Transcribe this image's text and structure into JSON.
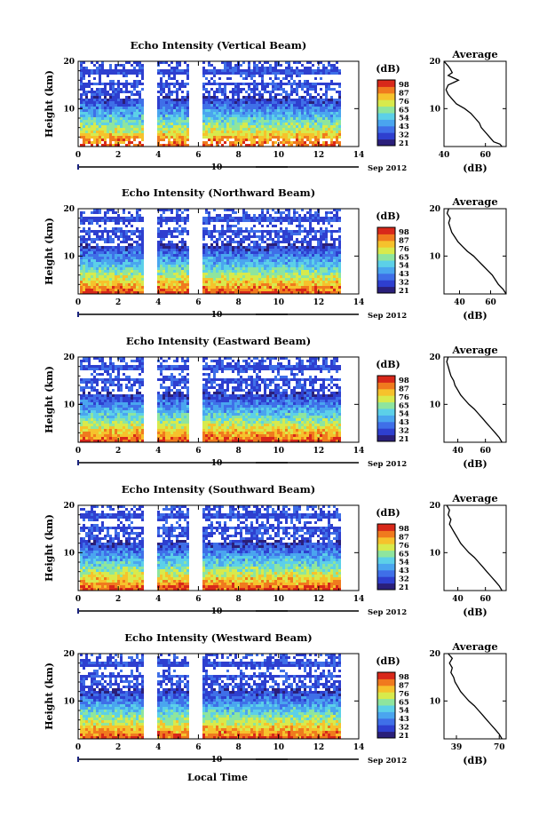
{
  "colors": {
    "colormap": [
      "#2a1f7a",
      "#2e3fcf",
      "#3f6fe8",
      "#4aa5ef",
      "#5cd0e8",
      "#8ee59e",
      "#d8ea4c",
      "#f6c22c",
      "#f07a1e",
      "#d8281a"
    ],
    "trace": "#000000",
    "time_bar": "#000000",
    "time_marker": "#1a237e"
  },
  "figure": {
    "xlabel": "Local Time",
    "date_label": "Sep 2012",
    "time_bar_label": "10"
  },
  "chart_data": [
    {
      "type": "heatmap",
      "title": "Echo Intensity (Vertical Beam)",
      "ylabel": "Height (km)",
      "xlim": [
        0,
        14
      ],
      "ylim": [
        2,
        20
      ],
      "xticks": [
        "0",
        "2",
        "4",
        "6",
        "8",
        "10",
        "12",
        "14"
      ],
      "yticks": [
        "10",
        "20"
      ],
      "data_gaps_hours": [
        [
          3.2,
          3.9
        ],
        [
          5.5,
          6.2
        ]
      ],
      "colorbar": {
        "unit": "(dB)",
        "tick_labels": [
          "98",
          "87",
          "76",
          "65",
          "54",
          "43",
          "32",
          "21"
        ],
        "range": [
          21,
          98
        ]
      },
      "average": {
        "title": "Average",
        "xlabel": "(dB)",
        "xlim": [
          40,
          70
        ],
        "xticks": [
          "40",
          "60"
        ],
        "ylim": [
          2,
          20
        ],
        "yticks": [
          "10",
          "20"
        ],
        "profile": [
          [
            68,
            2
          ],
          [
            67,
            2.5
          ],
          [
            64,
            3
          ],
          [
            62,
            4
          ],
          [
            60,
            5
          ],
          [
            58,
            6
          ],
          [
            57,
            7
          ],
          [
            55,
            8
          ],
          [
            53,
            9
          ],
          [
            50,
            10
          ],
          [
            46,
            11
          ],
          [
            44,
            12
          ],
          [
            42,
            13
          ],
          [
            41,
            14
          ],
          [
            42,
            15
          ],
          [
            45,
            15.6
          ],
          [
            47,
            16
          ],
          [
            42,
            17
          ],
          [
            44,
            17.6
          ],
          [
            43,
            18.4
          ],
          [
            42,
            19
          ],
          [
            40,
            20
          ]
        ]
      }
    },
    {
      "type": "heatmap",
      "title": "Echo Intensity (Northward Beam)",
      "ylabel": "Height (km)",
      "xlim": [
        0,
        14
      ],
      "ylim": [
        2,
        20
      ],
      "xticks": [
        "0",
        "2",
        "4",
        "6",
        "8",
        "10",
        "12",
        "14"
      ],
      "yticks": [
        "10",
        "20"
      ],
      "data_gaps_hours": [
        [
          3.2,
          3.9
        ],
        [
          5.5,
          6.2
        ]
      ],
      "colorbar": {
        "unit": "(dB)",
        "tick_labels": [
          "98",
          "87",
          "76",
          "65",
          "54",
          "43",
          "32",
          "21"
        ],
        "range": [
          21,
          98
        ]
      },
      "average": {
        "title": "Average",
        "xlabel": "(dB)",
        "xlim": [
          30,
          70
        ],
        "xticks": [
          "40",
          "60"
        ],
        "ylim": [
          2,
          20
        ],
        "yticks": [
          "10",
          "20"
        ],
        "profile": [
          [
            70,
            2
          ],
          [
            68,
            3
          ],
          [
            65,
            4
          ],
          [
            63,
            5
          ],
          [
            61,
            6
          ],
          [
            58,
            7
          ],
          [
            55,
            8
          ],
          [
            52,
            9
          ],
          [
            49,
            10
          ],
          [
            45,
            11
          ],
          [
            42,
            12
          ],
          [
            39,
            13
          ],
          [
            37,
            14
          ],
          [
            35,
            15
          ],
          [
            34,
            16
          ],
          [
            33,
            17
          ],
          [
            34,
            18
          ],
          [
            32,
            19
          ],
          [
            33,
            20
          ]
        ]
      }
    },
    {
      "type": "heatmap",
      "title": "Echo Intensity (Eastward Beam)",
      "ylabel": "Height (km)",
      "xlim": [
        0,
        14
      ],
      "ylim": [
        2,
        20
      ],
      "xticks": [
        "0",
        "2",
        "4",
        "6",
        "8",
        "10",
        "12",
        "14"
      ],
      "yticks": [
        "10",
        "20"
      ],
      "data_gaps_hours": [
        [
          3.2,
          3.9
        ],
        [
          5.5,
          6.2
        ]
      ],
      "colorbar": {
        "unit": "(dB)",
        "tick_labels": [
          "98",
          "87",
          "76",
          "65",
          "54",
          "43",
          "32",
          "21"
        ],
        "range": [
          21,
          98
        ]
      },
      "average": {
        "title": "Average",
        "xlabel": "(dB)",
        "xlim": [
          30,
          75
        ],
        "xticks": [
          "40",
          "60"
        ],
        "ylim": [
          2,
          20
        ],
        "yticks": [
          "10",
          "20"
        ],
        "profile": [
          [
            72,
            2
          ],
          [
            70,
            3
          ],
          [
            67,
            4
          ],
          [
            64,
            5
          ],
          [
            61,
            6
          ],
          [
            58,
            7
          ],
          [
            55,
            8
          ],
          [
            52,
            9
          ],
          [
            48,
            10
          ],
          [
            45,
            11
          ],
          [
            42,
            12
          ],
          [
            40,
            13
          ],
          [
            38,
            14
          ],
          [
            37,
            15
          ],
          [
            35,
            16
          ],
          [
            34,
            17
          ],
          [
            33,
            18
          ],
          [
            32,
            19
          ],
          [
            33,
            20
          ]
        ]
      }
    },
    {
      "type": "heatmap",
      "title": "Echo Intensity (Southward Beam)",
      "ylabel": "Height (km)",
      "xlim": [
        0,
        14
      ],
      "ylim": [
        2,
        20
      ],
      "xticks": [
        "0",
        "2",
        "4",
        "6",
        "8",
        "10",
        "12",
        "14"
      ],
      "yticks": [
        "10",
        "20"
      ],
      "data_gaps_hours": [
        [
          3.2,
          3.9
        ],
        [
          5.5,
          6.2
        ]
      ],
      "colorbar": {
        "unit": "(dB)",
        "tick_labels": [
          "98",
          "87",
          "76",
          "65",
          "54",
          "43",
          "32",
          "21"
        ],
        "range": [
          21,
          98
        ]
      },
      "average": {
        "title": "Average",
        "xlabel": "(dB)",
        "xlim": [
          30,
          75
        ],
        "xticks": [
          "40",
          "60"
        ],
        "ylim": [
          2,
          20
        ],
        "yticks": [
          "10",
          "20"
        ],
        "profile": [
          [
            72,
            2
          ],
          [
            70,
            3
          ],
          [
            67,
            4
          ],
          [
            64,
            5
          ],
          [
            61,
            6
          ],
          [
            58,
            7
          ],
          [
            55,
            8
          ],
          [
            52,
            9
          ],
          [
            48,
            10
          ],
          [
            45,
            11
          ],
          [
            42,
            12
          ],
          [
            40,
            13
          ],
          [
            38,
            14
          ],
          [
            36,
            15
          ],
          [
            34,
            16
          ],
          [
            35,
            17
          ],
          [
            33,
            18
          ],
          [
            34,
            19
          ],
          [
            32,
            20
          ]
        ]
      }
    },
    {
      "type": "heatmap",
      "title": "Echo Intensity (Westward Beam)",
      "ylabel": "Height (km)",
      "xlim": [
        0,
        14
      ],
      "ylim": [
        2,
        20
      ],
      "xticks": [
        "0",
        "2",
        "4",
        "6",
        "8",
        "10",
        "12",
        "14"
      ],
      "yticks": [
        "10",
        "20"
      ],
      "data_gaps_hours": [
        [
          3.2,
          3.9
        ],
        [
          5.5,
          6.2
        ]
      ],
      "colorbar": {
        "unit": "(dB)",
        "tick_labels": [
          "98",
          "87",
          "76",
          "65",
          "54",
          "43",
          "32",
          "21"
        ],
        "range": [
          21,
          98
        ]
      },
      "average": {
        "title": "Average",
        "xlabel": "(dB)",
        "xlim": [
          30,
          75
        ],
        "xticks": [
          "39",
          "70"
        ],
        "ylim": [
          2,
          20
        ],
        "yticks": [
          "10",
          "20"
        ],
        "profile": [
          [
            72,
            2
          ],
          [
            70,
            3
          ],
          [
            67,
            4
          ],
          [
            64,
            5
          ],
          [
            61,
            6
          ],
          [
            58,
            7
          ],
          [
            55,
            8
          ],
          [
            52,
            9
          ],
          [
            48,
            10
          ],
          [
            45,
            11
          ],
          [
            42,
            12
          ],
          [
            40,
            13
          ],
          [
            38,
            14
          ],
          [
            37,
            15
          ],
          [
            35,
            16
          ],
          [
            36,
            17
          ],
          [
            34,
            18
          ],
          [
            36,
            19
          ],
          [
            33,
            20
          ]
        ]
      }
    }
  ]
}
